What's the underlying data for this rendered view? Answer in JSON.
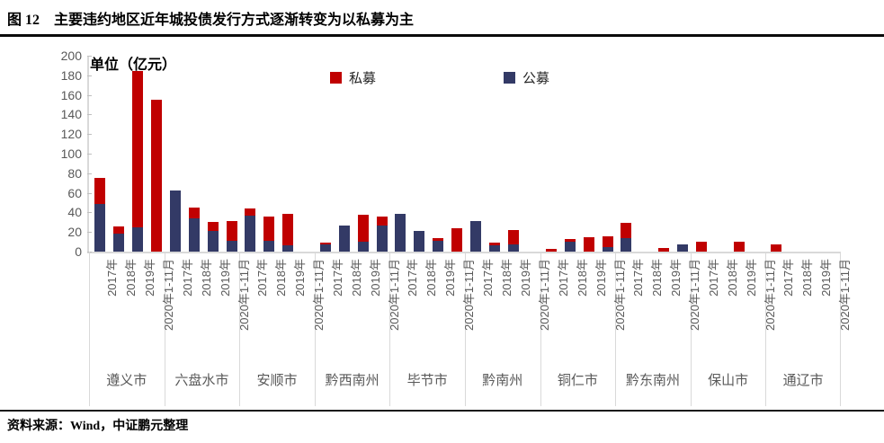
{
  "title": "图 12　主要违约地区近年城投债发行方式逐渐转变为以私募为主",
  "unit_label": "单位（亿元）",
  "source": "资料来源：Wind，中证鹏元整理",
  "legend": [
    {
      "label": "私募",
      "color": "#c00000"
    },
    {
      "label": "公募",
      "color": "#333a66"
    }
  ],
  "colors": {
    "private_red": "#c00000",
    "public_navy": "#333a66",
    "axis_text": "#595959",
    "axis_line": "#d9d9d9",
    "rule_black": "#0a0a0a"
  },
  "chart_data": {
    "type": "bar",
    "stacked": true,
    "stack_order_bottom_to_top": [
      "公募",
      "私募"
    ],
    "title": "主要违约地区近年城投债发行方式逐渐转变为以私募为主",
    "unit": "亿元",
    "ylim": [
      0,
      200
    ],
    "ytick_step": 20,
    "grid": false,
    "legend_position": "top",
    "groups": [
      "遵义市",
      "六盘水市",
      "安顺市",
      "黔西南州",
      "毕节市",
      "黔南州",
      "铜仁市",
      "黔东南州",
      "保山市",
      "通辽市"
    ],
    "periods": [
      "2017年",
      "2018年",
      "2019年",
      "2020年1-11月"
    ],
    "series": [
      {
        "name": "私募",
        "color": "#c00000",
        "values": [
          [
            26,
            8,
            159,
            155
          ],
          [
            0,
            11,
            9,
            20
          ],
          [
            7,
            25,
            33,
            0
          ],
          [
            2,
            0,
            28,
            9
          ],
          [
            0,
            0,
            3,
            24
          ],
          [
            0,
            3,
            15,
            0
          ],
          [
            3,
            3,
            15,
            11
          ],
          [
            15,
            0,
            4,
            0
          ],
          [
            10,
            0,
            10,
            0
          ],
          [
            7,
            0,
            0,
            0
          ]
        ]
      },
      {
        "name": "公募",
        "color": "#333a66",
        "values": [
          [
            49,
            18,
            25,
            0
          ],
          [
            62,
            34,
            21,
            11
          ],
          [
            37,
            11,
            6,
            0
          ],
          [
            7,
            27,
            10,
            27
          ],
          [
            39,
            21,
            11,
            0
          ],
          [
            31,
            6,
            7,
            0
          ],
          [
            0,
            10,
            0,
            5
          ],
          [
            14,
            0,
            0,
            7
          ],
          [
            0,
            0,
            0,
            0
          ],
          [
            0,
            0,
            0,
            0
          ]
        ]
      }
    ]
  }
}
